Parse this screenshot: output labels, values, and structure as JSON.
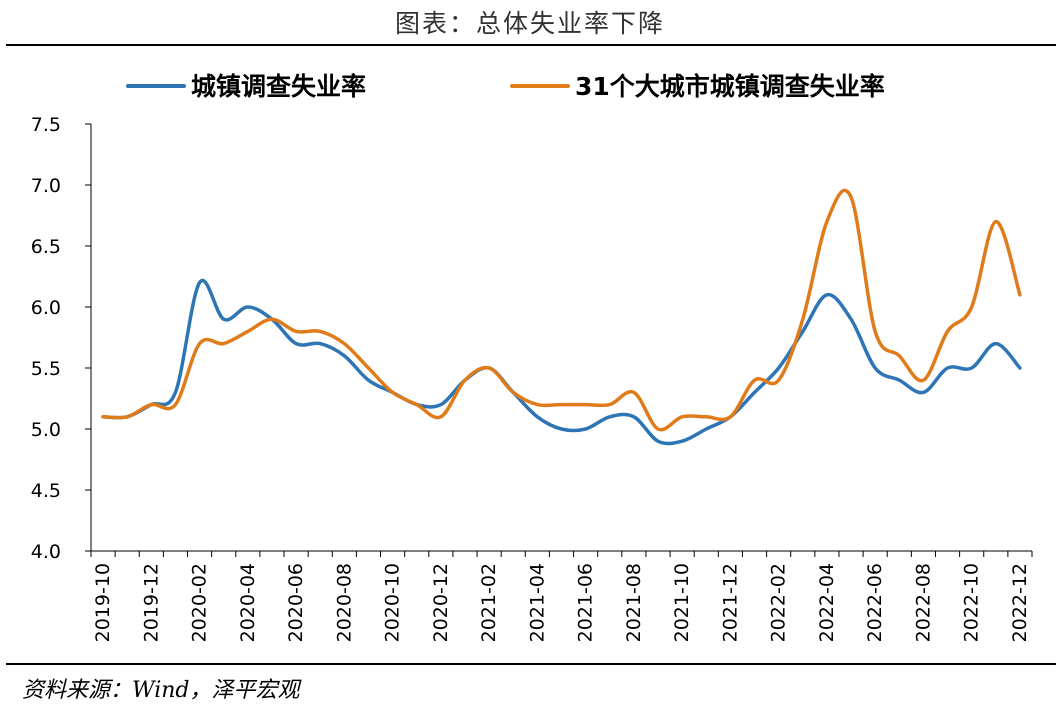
{
  "title": "图表：总体失业率下降",
  "source": "资料来源：Wind，泽平宏观",
  "chart_data": {
    "type": "line",
    "legend_position": "top",
    "grid": false,
    "ylim": [
      4.0,
      7.5
    ],
    "yticks": [
      "4.0",
      "4.5",
      "5.0",
      "5.5",
      "6.0",
      "6.5",
      "7.0",
      "7.5"
    ],
    "ytick_values": [
      4.0,
      4.5,
      5.0,
      5.5,
      6.0,
      6.5,
      7.0,
      7.5
    ],
    "x": [
      "2019-10",
      "2019-11",
      "2019-12",
      "2020-01",
      "2020-02",
      "2020-03",
      "2020-04",
      "2020-05",
      "2020-06",
      "2020-07",
      "2020-08",
      "2020-09",
      "2020-10",
      "2020-11",
      "2020-12",
      "2021-01",
      "2021-02",
      "2021-03",
      "2021-04",
      "2021-05",
      "2021-06",
      "2021-07",
      "2021-08",
      "2021-09",
      "2021-10",
      "2021-11",
      "2021-12",
      "2022-01",
      "2022-02",
      "2022-03",
      "2022-04",
      "2022-05",
      "2022-06",
      "2022-07",
      "2022-08",
      "2022-09",
      "2022-10",
      "2022-11",
      "2022-12"
    ],
    "xtick_labels": [
      "2019-10",
      "2019-12",
      "2020-02",
      "2020-04",
      "2020-06",
      "2020-08",
      "2020-10",
      "2020-12",
      "2021-02",
      "2021-04",
      "2021-06",
      "2021-08",
      "2021-10",
      "2021-12",
      "2022-02",
      "2022-04",
      "2022-06",
      "2022-08",
      "2022-10",
      "2022-12"
    ],
    "series": [
      {
        "name": "城镇调查失业率",
        "color": "#2E75B6",
        "values": [
          5.1,
          5.1,
          5.2,
          5.3,
          6.2,
          5.9,
          6.0,
          5.9,
          5.7,
          5.7,
          5.6,
          5.4,
          5.3,
          5.2,
          5.2,
          5.4,
          5.5,
          5.3,
          5.1,
          5.0,
          5.0,
          5.1,
          5.1,
          4.9,
          4.9,
          5.0,
          5.1,
          5.3,
          5.5,
          5.8,
          6.1,
          5.9,
          5.5,
          5.4,
          5.3,
          5.5,
          5.5,
          5.7,
          5.5
        ]
      },
      {
        "name": "31个大城市城镇调查失业率",
        "color": "#E07B1A",
        "values": [
          5.1,
          5.1,
          5.2,
          5.2,
          5.7,
          5.7,
          5.8,
          5.9,
          5.8,
          5.8,
          5.7,
          5.5,
          5.3,
          5.2,
          5.1,
          5.4,
          5.5,
          5.3,
          5.2,
          5.2,
          5.2,
          5.2,
          5.3,
          5.0,
          5.1,
          5.1,
          5.1,
          5.4,
          5.4,
          5.9,
          6.7,
          6.9,
          5.8,
          5.6,
          5.4,
          5.8,
          6.0,
          6.7,
          6.1
        ]
      }
    ]
  }
}
